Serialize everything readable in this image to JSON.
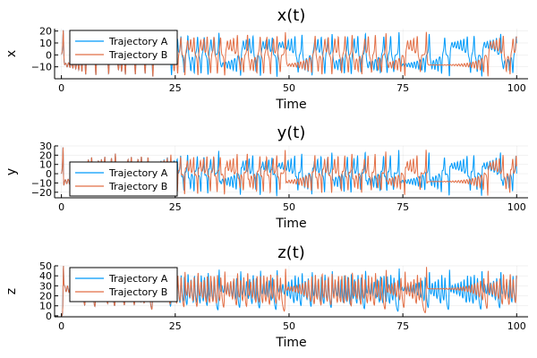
{
  "chart_data": [
    {
      "type": "line",
      "title": "x(t)",
      "xlabel": "Time",
      "ylabel": "x",
      "xlim": [
        -1.5,
        102.5
      ],
      "ylim": [
        -20,
        22
      ],
      "xticks": [
        0,
        25,
        50,
        75,
        100
      ],
      "yticks": [
        -10,
        0,
        10,
        20
      ],
      "legend_position": "top-left",
      "grid": true,
      "series": [
        {
          "name": "Trajectory A",
          "color": "#009AF9"
        },
        {
          "name": "Trajectory B",
          "color": "#E26F46"
        }
      ]
    },
    {
      "type": "line",
      "title": "y(t)",
      "xlabel": "Time",
      "ylabel": "y",
      "xlim": [
        -1.5,
        102.5
      ],
      "ylim": [
        -26,
        30
      ],
      "xticks": [
        0,
        25,
        50,
        75,
        100
      ],
      "yticks": [
        -20,
        -10,
        0,
        10,
        20,
        30
      ],
      "legend_position": "bottom-left",
      "grid": true,
      "series": [
        {
          "name": "Trajectory A",
          "color": "#009AF9"
        },
        {
          "name": "Trajectory B",
          "color": "#E26F46"
        }
      ]
    },
    {
      "type": "line",
      "title": "z(t)",
      "xlabel": "Time",
      "ylabel": "z",
      "xlim": [
        -1.5,
        102.5
      ],
      "ylim": [
        -1,
        50
      ],
      "xticks": [
        0,
        25,
        50,
        75,
        100
      ],
      "yticks": [
        0,
        10,
        20,
        30,
        40,
        50
      ],
      "legend_position": "top-left",
      "grid": true,
      "series": [
        {
          "name": "Trajectory A",
          "color": "#009AF9"
        },
        {
          "name": "Trajectory B",
          "color": "#E26F46"
        }
      ]
    }
  ]
}
